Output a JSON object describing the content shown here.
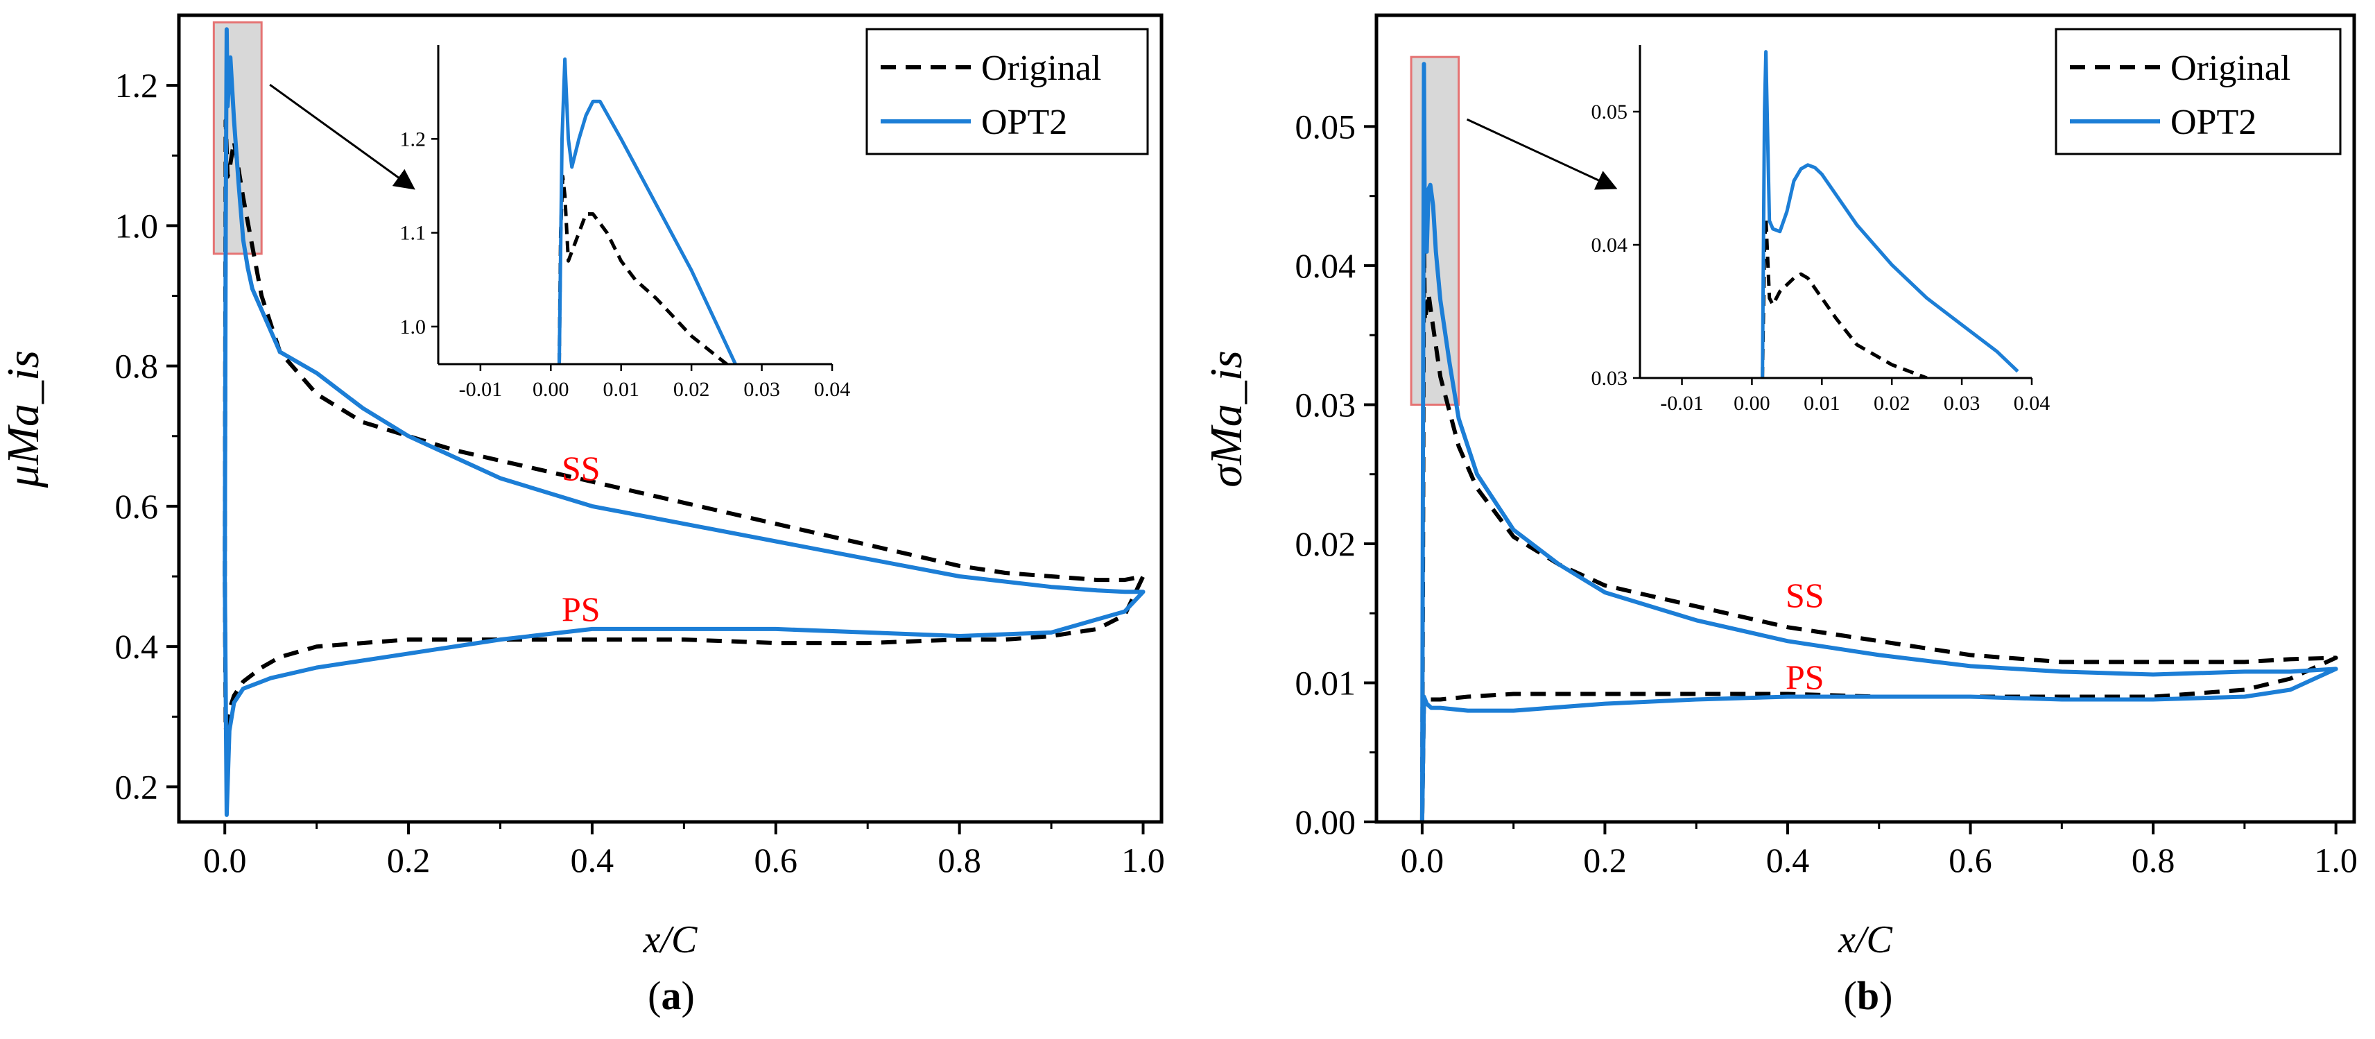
{
  "chart_data": [
    {
      "type": "line",
      "panel_label": "a",
      "xlabel": "x/C",
      "ylabel": "μMa_is",
      "xlim": [
        -0.05,
        1.02
      ],
      "ylim": [
        0.15,
        1.3
      ],
      "xticks": [
        0.0,
        0.2,
        0.4,
        0.6,
        0.8,
        1.0
      ],
      "xtick_labels": [
        "0.0",
        "0.2",
        "0.4",
        "0.6",
        "0.8",
        "1.0"
      ],
      "yticks": [
        0.2,
        0.4,
        0.6,
        0.8,
        1.0,
        1.2
      ],
      "ytick_labels": [
        "0.2",
        "0.4",
        "0.6",
        "0.8",
        "1.0",
        "1.2"
      ],
      "legend_position": "top-right",
      "annotations": [
        {
          "text": "SS",
          "x": 0.41,
          "y": 0.66,
          "color": "#ff0000"
        },
        {
          "text": "PS",
          "x": 0.41,
          "y": 0.43,
          "color": "#ff0000"
        }
      ],
      "zoom_box": {
        "x": [
          -0.012,
          0.04
        ],
        "y": [
          0.96,
          1.29
        ]
      },
      "series": [
        {
          "name": "Original",
          "color": "#000000",
          "dash": true,
          "x": [
            0,
            0.001,
            0.003,
            0.005,
            0.01,
            0.02,
            0.04,
            0.06,
            0.1,
            0.15,
            0.2,
            0.25,
            0.3,
            0.35,
            0.4,
            0.45,
            0.5,
            0.55,
            0.6,
            0.65,
            0.7,
            0.75,
            0.8,
            0.85,
            0.9,
            0.95,
            0.98,
            1.0,
            1.0,
            0.98,
            0.95,
            0.9,
            0.85,
            0.8,
            0.7,
            0.6,
            0.5,
            0.4,
            0.3,
            0.25,
            0.2,
            0.15,
            0.1,
            0.06,
            0.04,
            0.02,
            0.01,
            0.005,
            0.003,
            0.001,
            0
          ],
          "y": [
            0.5,
            1.15,
            1.07,
            1.08,
            1.12,
            1.04,
            0.9,
            0.82,
            0.76,
            0.72,
            0.7,
            0.68,
            0.665,
            0.65,
            0.635,
            0.62,
            0.605,
            0.59,
            0.575,
            0.56,
            0.545,
            0.53,
            0.515,
            0.505,
            0.5,
            0.495,
            0.495,
            0.5,
            0.5,
            0.445,
            0.425,
            0.415,
            0.41,
            0.41,
            0.405,
            0.405,
            0.41,
            0.41,
            0.41,
            0.41,
            0.41,
            0.405,
            0.4,
            0.385,
            0.37,
            0.35,
            0.33,
            0.31,
            0.3,
            0.28,
            0.5
          ]
        },
        {
          "name": "OPT2",
          "color": "#1c7ed6",
          "dash": false,
          "x": [
            0,
            0.001,
            0.002,
            0.003,
            0.006,
            0.01,
            0.015,
            0.02,
            0.025,
            0.03,
            0.04,
            0.06,
            0.1,
            0.15,
            0.2,
            0.3,
            0.4,
            0.5,
            0.6,
            0.7,
            0.8,
            0.9,
            0.95,
            0.98,
            1.0,
            1.0,
            0.98,
            0.9,
            0.8,
            0.7,
            0.6,
            0.5,
            0.4,
            0.3,
            0.2,
            0.1,
            0.05,
            0.02,
            0.01,
            0.005,
            0.002,
            0
          ],
          "y": [
            0.5,
            1.0,
            1.28,
            1.17,
            1.24,
            1.15,
            1.06,
            0.98,
            0.94,
            0.91,
            0.88,
            0.82,
            0.79,
            0.74,
            0.7,
            0.64,
            0.6,
            0.575,
            0.55,
            0.525,
            0.5,
            0.485,
            0.48,
            0.478,
            0.478,
            0.478,
            0.45,
            0.42,
            0.415,
            0.42,
            0.425,
            0.425,
            0.425,
            0.41,
            0.39,
            0.37,
            0.355,
            0.34,
            0.32,
            0.28,
            0.16,
            0.5
          ]
        }
      ],
      "inset": {
        "xlim": [
          -0.016,
          0.04
        ],
        "ylim": [
          0.96,
          1.3
        ],
        "xticks": [
          -0.01,
          0.0,
          0.01,
          0.02,
          0.03,
          0.04
        ],
        "xtick_labels": [
          "-0.01",
          "0.00",
          "0.01",
          "0.02",
          "0.03",
          "0.04"
        ],
        "yticks": [
          1.0,
          1.1,
          1.2
        ],
        "ytick_labels": [
          "1.0",
          "1.1",
          "1.2"
        ],
        "series": [
          {
            "name": "Original",
            "x": [
              0.0012,
              0.0014,
              0.0017,
              0.002,
              0.0025,
              0.003,
              0.004,
              0.005,
              0.006,
              0.008,
              0.01,
              0.012,
              0.015,
              0.02,
              0.025,
              0.03
            ],
            "y": [
              0.96,
              1.1,
              1.16,
              1.14,
              1.07,
              1.08,
              1.1,
              1.12,
              1.12,
              1.1,
              1.07,
              1.05,
              1.03,
              0.99,
              0.96,
              0.93
            ]
          },
          {
            "name": "OPT2",
            "x": [
              0.0012,
              0.0014,
              0.0016,
              0.002,
              0.0025,
              0.003,
              0.004,
              0.005,
              0.006,
              0.007,
              0.01,
              0.015,
              0.02,
              0.025,
              0.03
            ],
            "y": [
              0.96,
              1.08,
              1.2,
              1.285,
              1.2,
              1.17,
              1.2,
              1.225,
              1.24,
              1.24,
              1.2,
              1.13,
              1.06,
              0.98,
              0.9
            ]
          }
        ]
      }
    },
    {
      "type": "line",
      "panel_label": "b",
      "xlabel": "x/C",
      "ylabel": "σMa_is",
      "xlim": [
        -0.05,
        1.02
      ],
      "ylim": [
        0.0,
        0.058
      ],
      "xticks": [
        0.0,
        0.2,
        0.4,
        0.6,
        0.8,
        1.0
      ],
      "xtick_labels": [
        "0.0",
        "0.2",
        "0.4",
        "0.6",
        "0.8",
        "1.0"
      ],
      "yticks": [
        0.0,
        0.01,
        0.02,
        0.03,
        0.04,
        0.05
      ],
      "ytick_labels": [
        "0.00",
        "0.01",
        "0.02",
        "0.03",
        "0.04",
        "0.05"
      ],
      "legend_position": "top-right",
      "annotations": [
        {
          "text": "SS",
          "x": 0.41,
          "y": 0.0158,
          "color": "#ff0000"
        },
        {
          "text": "PS",
          "x": 0.41,
          "y": 0.0102,
          "color": "#ff0000"
        }
      ],
      "zoom_box": {
        "x": [
          -0.012,
          0.04
        ],
        "y": [
          0.03,
          0.055
        ]
      },
      "series": [
        {
          "name": "Original",
          "color": "#000000",
          "dash": true,
          "x": [
            0,
            0.001,
            0.002,
            0.003,
            0.005,
            0.007,
            0.01,
            0.02,
            0.04,
            0.06,
            0.1,
            0.15,
            0.2,
            0.3,
            0.4,
            0.5,
            0.6,
            0.7,
            0.8,
            0.9,
            0.95,
            1.0,
            1.0,
            0.95,
            0.9,
            0.8,
            0.7,
            0.6,
            0.5,
            0.4,
            0.3,
            0.2,
            0.1,
            0.05,
            0.02,
            0.01,
            0.005,
            0.002,
            0
          ],
          "y": [
            0.0,
            0.02,
            0.042,
            0.036,
            0.037,
            0.038,
            0.0365,
            0.032,
            0.027,
            0.024,
            0.0205,
            0.0185,
            0.017,
            0.0155,
            0.014,
            0.013,
            0.012,
            0.0115,
            0.0115,
            0.0115,
            0.0117,
            0.0118,
            0.0118,
            0.0103,
            0.0095,
            0.009,
            0.009,
            0.009,
            0.009,
            0.0092,
            0.0092,
            0.0092,
            0.0092,
            0.009,
            0.0088,
            0.0088,
            0.0088,
            0.009,
            0.0
          ]
        },
        {
          "name": "OPT2",
          "color": "#1c7ed6",
          "dash": false,
          "x": [
            0,
            0.001,
            0.002,
            0.003,
            0.005,
            0.007,
            0.009,
            0.012,
            0.015,
            0.02,
            0.03,
            0.04,
            0.06,
            0.1,
            0.15,
            0.2,
            0.3,
            0.4,
            0.5,
            0.6,
            0.7,
            0.8,
            0.9,
            0.95,
            1.0,
            1.0,
            0.95,
            0.9,
            0.8,
            0.7,
            0.6,
            0.5,
            0.4,
            0.3,
            0.2,
            0.1,
            0.05,
            0.02,
            0.01,
            0.005,
            0.002,
            0
          ],
          "y": [
            0.0,
            0.03,
            0.0545,
            0.0415,
            0.041,
            0.0455,
            0.0458,
            0.0443,
            0.041,
            0.0375,
            0.033,
            0.029,
            0.025,
            0.021,
            0.0185,
            0.0165,
            0.0145,
            0.013,
            0.012,
            0.0112,
            0.0108,
            0.0106,
            0.0108,
            0.0108,
            0.011,
            0.011,
            0.0095,
            0.009,
            0.0088,
            0.0088,
            0.009,
            0.009,
            0.009,
            0.0088,
            0.0085,
            0.008,
            0.008,
            0.0082,
            0.0082,
            0.0085,
            0.009,
            0.0
          ]
        }
      ],
      "inset": {
        "xlim": [
          -0.016,
          0.04
        ],
        "ylim": [
          0.03,
          0.055
        ],
        "xticks": [
          -0.01,
          0.0,
          0.01,
          0.02,
          0.03,
          0.04
        ],
        "xtick_labels": [
          "-0.01",
          "0.00",
          "0.01",
          "0.02",
          "0.03",
          "0.04"
        ],
        "yticks": [
          0.03,
          0.04,
          0.05
        ],
        "ytick_labels": [
          "0.03",
          "0.04",
          "0.05"
        ],
        "series": [
          {
            "name": "Original",
            "x": [
              0.0015,
              0.0018,
              0.002,
              0.0025,
              0.003,
              0.004,
              0.005,
              0.006,
              0.007,
              0.008,
              0.01,
              0.012,
              0.015,
              0.02,
              0.025
            ],
            "y": [
              0.03,
              0.04,
              0.042,
              0.036,
              0.0355,
              0.0365,
              0.037,
              0.0375,
              0.0378,
              0.0375,
              0.036,
              0.0345,
              0.0325,
              0.031,
              0.03
            ]
          },
          {
            "name": "OPT2",
            "x": [
              0.0015,
              0.0018,
              0.002,
              0.0025,
              0.003,
              0.004,
              0.005,
              0.006,
              0.007,
              0.008,
              0.009,
              0.01,
              0.015,
              0.02,
              0.025,
              0.03,
              0.035,
              0.038
            ],
            "y": [
              0.03,
              0.05,
              0.0545,
              0.0418,
              0.0412,
              0.041,
              0.0425,
              0.0448,
              0.0457,
              0.046,
              0.0458,
              0.0453,
              0.0415,
              0.0385,
              0.036,
              0.034,
              0.032,
              0.0305
            ]
          }
        ]
      }
    }
  ]
}
